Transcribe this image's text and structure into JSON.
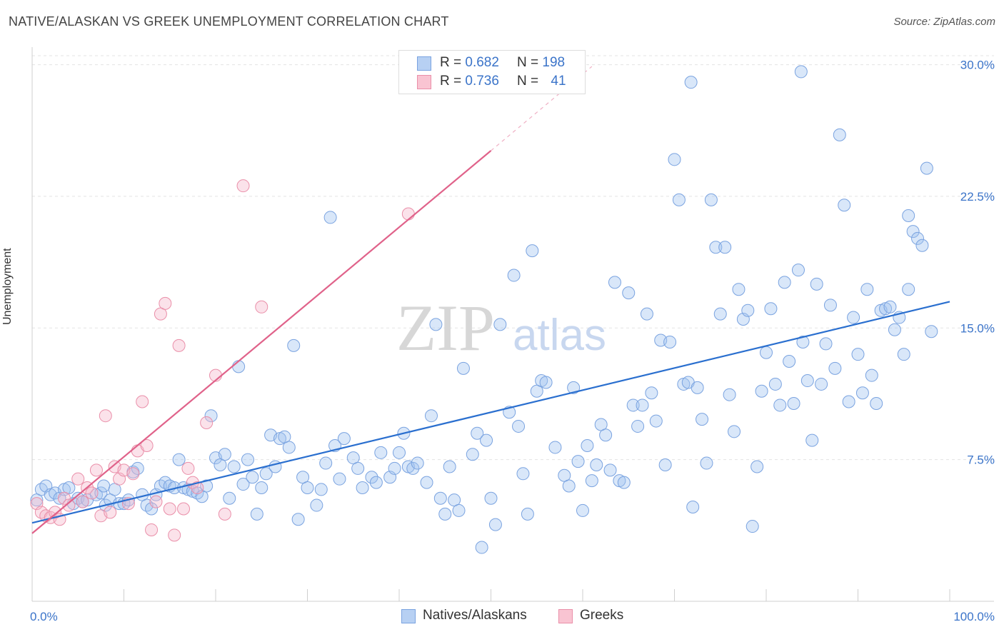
{
  "title": "NATIVE/ALASKAN VS GREEK UNEMPLOYMENT CORRELATION CHART",
  "source": "Source: ZipAtlas.com",
  "watermark": {
    "zip": "ZIP",
    "atlas": "atlas"
  },
  "legend": {
    "r_label": "R =",
    "n_label": "N =",
    "rows": [
      {
        "series": "Natives/Alaskans",
        "r": "0.682",
        "n": "198",
        "color": "#b7d0f3"
      },
      {
        "series": "Greeks",
        "r": "0.736",
        "n": "41",
        "color": "#f9c4d2"
      }
    ]
  },
  "chart_data": {
    "type": "scatter",
    "title": "NATIVE/ALASKAN VS GREEK UNEMPLOYMENT CORRELATION CHART",
    "xlabel": "",
    "ylabel": "Unemployment",
    "xlim": [
      0,
      100
    ],
    "ylim": [
      0,
      31
    ],
    "x_ticks": [
      "0.0%",
      "100.0%"
    ],
    "y_ticks": [
      "7.5%",
      "15.0%",
      "22.5%",
      "30.0%"
    ],
    "y_tick_values": [
      7.5,
      15.0,
      22.5,
      30.0
    ],
    "grid": true,
    "legend_position": "top-center",
    "colors": {
      "natives": "#7aa3e0",
      "natives_line": "#2a6fcf",
      "greeks": "#ea8fa9",
      "greeks_line": "#e0628a",
      "tick_label": "#3b74c9"
    },
    "series": [
      {
        "name": "Natives/Alaskans",
        "trend": {
          "x": [
            0,
            100
          ],
          "y": [
            3.9,
            16.5
          ]
        },
        "points": [
          [
            0.5,
            5.2
          ],
          [
            1.0,
            5.8
          ],
          [
            1.5,
            6.0
          ],
          [
            2.0,
            5.5
          ],
          [
            2.5,
            5.6
          ],
          [
            3.0,
            5.3
          ],
          [
            3.5,
            5.8
          ],
          [
            4.0,
            5.9
          ],
          [
            4.5,
            5.0
          ],
          [
            5.0,
            5.3
          ],
          [
            5.5,
            5.1
          ],
          [
            6.0,
            5.2
          ],
          [
            7.0,
            5.5
          ],
          [
            7.5,
            5.6
          ],
          [
            7.8,
            6.0
          ],
          [
            8.0,
            4.9
          ],
          [
            8.5,
            5.2
          ],
          [
            9.0,
            5.8
          ],
          [
            9.5,
            5.0
          ],
          [
            10.0,
            5.0
          ],
          [
            10.5,
            5.2
          ],
          [
            11.0,
            6.8
          ],
          [
            11.5,
            7.0
          ],
          [
            12.0,
            5.5
          ],
          [
            12.5,
            4.9
          ],
          [
            13.0,
            4.7
          ],
          [
            13.5,
            5.5
          ],
          [
            14.0,
            6.0
          ],
          [
            14.5,
            6.2
          ],
          [
            15.0,
            6.0
          ],
          [
            15.5,
            5.9
          ],
          [
            16.0,
            7.5
          ],
          [
            16.5,
            5.9
          ],
          [
            17.0,
            5.8
          ],
          [
            17.5,
            5.7
          ],
          [
            18.0,
            5.6
          ],
          [
            18.5,
            5.4
          ],
          [
            19.0,
            6.0
          ],
          [
            19.5,
            10.0
          ],
          [
            20.0,
            7.6
          ],
          [
            20.5,
            7.2
          ],
          [
            21.0,
            7.8
          ],
          [
            21.5,
            5.3
          ],
          [
            22.0,
            7.1
          ],
          [
            22.5,
            12.8
          ],
          [
            23.0,
            6.1
          ],
          [
            23.5,
            7.5
          ],
          [
            24.0,
            6.5
          ],
          [
            24.5,
            4.4
          ],
          [
            25.0,
            5.9
          ],
          [
            25.5,
            6.7
          ],
          [
            26.0,
            8.9
          ],
          [
            26.5,
            7.1
          ],
          [
            27.0,
            8.7
          ],
          [
            27.5,
            8.8
          ],
          [
            28.0,
            8.2
          ],
          [
            28.5,
            14.0
          ],
          [
            29.0,
            4.1
          ],
          [
            29.5,
            6.5
          ],
          [
            30.0,
            5.9
          ],
          [
            31.0,
            4.9
          ],
          [
            31.5,
            5.8
          ],
          [
            32.0,
            7.3
          ],
          [
            32.5,
            21.3
          ],
          [
            33.0,
            8.3
          ],
          [
            33.5,
            6.4
          ],
          [
            34.0,
            8.7
          ],
          [
            35.0,
            7.6
          ],
          [
            35.5,
            7.0
          ],
          [
            36.0,
            5.9
          ],
          [
            37.0,
            6.5
          ],
          [
            37.5,
            6.2
          ],
          [
            38.0,
            7.9
          ],
          [
            39.0,
            6.5
          ],
          [
            39.5,
            7.0
          ],
          [
            40.0,
            7.9
          ],
          [
            40.5,
            9.0
          ],
          [
            41.0,
            7.1
          ],
          [
            41.5,
            7.0
          ],
          [
            42.0,
            7.3
          ],
          [
            43.0,
            6.2
          ],
          [
            43.5,
            10.0
          ],
          [
            44.0,
            15.2
          ],
          [
            44.5,
            5.3
          ],
          [
            45.0,
            4.4
          ],
          [
            45.5,
            7.1
          ],
          [
            46.0,
            5.2
          ],
          [
            46.5,
            4.6
          ],
          [
            47.0,
            12.7
          ],
          [
            48.0,
            7.8
          ],
          [
            48.5,
            9.0
          ],
          [
            49.0,
            2.5
          ],
          [
            49.5,
            8.6
          ],
          [
            50.0,
            5.3
          ],
          [
            50.5,
            3.8
          ],
          [
            51.0,
            15.2
          ],
          [
            52.0,
            10.2
          ],
          [
            52.5,
            18.0
          ],
          [
            53.0,
            9.4
          ],
          [
            53.5,
            6.7
          ],
          [
            54.0,
            4.4
          ],
          [
            54.5,
            19.4
          ],
          [
            55.0,
            11.4
          ],
          [
            55.5,
            12.0
          ],
          [
            56.0,
            11.9
          ],
          [
            57.0,
            8.2
          ],
          [
            58.0,
            6.6
          ],
          [
            58.5,
            6.0
          ],
          [
            59.0,
            11.6
          ],
          [
            59.5,
            7.4
          ],
          [
            60.0,
            4.6
          ],
          [
            60.5,
            8.3
          ],
          [
            61.0,
            6.3
          ],
          [
            61.5,
            7.2
          ],
          [
            62.0,
            9.5
          ],
          [
            62.5,
            8.9
          ],
          [
            63.0,
            6.9
          ],
          [
            63.5,
            17.6
          ],
          [
            64.0,
            6.3
          ],
          [
            64.5,
            6.2
          ],
          [
            65.0,
            17.0
          ],
          [
            65.5,
            10.6
          ],
          [
            66.0,
            9.4
          ],
          [
            66.5,
            10.6
          ],
          [
            67.0,
            15.8
          ],
          [
            67.5,
            11.3
          ],
          [
            68.0,
            9.7
          ],
          [
            68.5,
            14.3
          ],
          [
            69.0,
            7.2
          ],
          [
            69.5,
            14.2
          ],
          [
            70.0,
            24.6
          ],
          [
            70.5,
            22.3
          ],
          [
            71.0,
            11.8
          ],
          [
            71.5,
            11.9
          ],
          [
            72.0,
            4.8
          ],
          [
            72.5,
            11.6
          ],
          [
            73.0,
            9.8
          ],
          [
            73.5,
            7.3
          ],
          [
            74.0,
            22.3
          ],
          [
            74.5,
            19.6
          ],
          [
            75.0,
            15.8
          ],
          [
            75.5,
            19.6
          ],
          [
            76.0,
            11.2
          ],
          [
            76.5,
            9.1
          ],
          [
            77.0,
            17.2
          ],
          [
            77.5,
            15.5
          ],
          [
            78.0,
            16.0
          ],
          [
            78.5,
            3.7
          ],
          [
            79.0,
            7.1
          ],
          [
            79.5,
            11.4
          ],
          [
            80.0,
            13.6
          ],
          [
            80.5,
            16.1
          ],
          [
            81.0,
            11.8
          ],
          [
            81.5,
            10.6
          ],
          [
            82.0,
            17.6
          ],
          [
            82.5,
            13.1
          ],
          [
            83.0,
            10.7
          ],
          [
            83.5,
            18.3
          ],
          [
            84.0,
            14.2
          ],
          [
            84.5,
            12.0
          ],
          [
            85.0,
            8.6
          ],
          [
            85.5,
            17.5
          ],
          [
            86.0,
            11.8
          ],
          [
            86.5,
            14.1
          ],
          [
            87.0,
            16.3
          ],
          [
            87.5,
            12.7
          ],
          [
            88.0,
            26.0
          ],
          [
            88.5,
            22.0
          ],
          [
            89.0,
            10.8
          ],
          [
            89.5,
            15.6
          ],
          [
            90.0,
            13.5
          ],
          [
            90.5,
            11.3
          ],
          [
            91.0,
            17.2
          ],
          [
            91.5,
            12.3
          ],
          [
            92.0,
            10.7
          ],
          [
            92.5,
            16.0
          ],
          [
            93.0,
            16.1
          ],
          [
            93.5,
            16.2
          ],
          [
            94.0,
            14.9
          ],
          [
            94.5,
            15.6
          ],
          [
            95.0,
            13.5
          ],
          [
            95.5,
            21.4
          ],
          [
            96.0,
            20.5
          ],
          [
            96.5,
            20.1
          ],
          [
            97.0,
            19.7
          ],
          [
            97.5,
            24.1
          ],
          [
            71.8,
            29.0
          ],
          [
            83.8,
            29.6
          ],
          [
            95.5,
            17.2
          ],
          [
            98.0,
            14.8
          ]
        ]
      },
      {
        "name": "Greeks",
        "trend": {
          "x": [
            0,
            50
          ],
          "y": [
            3.3,
            25.1
          ]
        },
        "trend_extension": {
          "x": [
            50,
            61
          ],
          "y": [
            25.1,
            29.9
          ]
        },
        "points": [
          [
            0.5,
            5.0
          ],
          [
            1.0,
            4.5
          ],
          [
            1.5,
            4.3
          ],
          [
            2.0,
            4.2
          ],
          [
            2.5,
            4.5
          ],
          [
            3.0,
            4.1
          ],
          [
            3.5,
            5.3
          ],
          [
            4.0,
            4.9
          ],
          [
            5.0,
            6.4
          ],
          [
            5.5,
            5.1
          ],
          [
            6.0,
            5.9
          ],
          [
            6.5,
            5.6
          ],
          [
            7.0,
            6.9
          ],
          [
            7.5,
            4.3
          ],
          [
            8.0,
            10.0
          ],
          [
            8.5,
            4.5
          ],
          [
            9.0,
            7.1
          ],
          [
            9.5,
            6.4
          ],
          [
            10.0,
            6.9
          ],
          [
            10.5,
            5.0
          ],
          [
            11.0,
            6.7
          ],
          [
            11.5,
            8.0
          ],
          [
            12.0,
            10.8
          ],
          [
            12.5,
            8.3
          ],
          [
            13.0,
            3.5
          ],
          [
            13.5,
            5.1
          ],
          [
            14.0,
            15.8
          ],
          [
            14.5,
            16.4
          ],
          [
            15.0,
            4.7
          ],
          [
            15.5,
            3.2
          ],
          [
            16.0,
            14.0
          ],
          [
            16.5,
            4.7
          ],
          [
            17.0,
            7.0
          ],
          [
            17.5,
            6.2
          ],
          [
            18.0,
            5.9
          ],
          [
            19.0,
            9.6
          ],
          [
            20.0,
            12.3
          ],
          [
            21.0,
            4.4
          ],
          [
            23.0,
            23.1
          ],
          [
            25.0,
            16.2
          ],
          [
            41.0,
            21.5
          ]
        ]
      }
    ]
  }
}
